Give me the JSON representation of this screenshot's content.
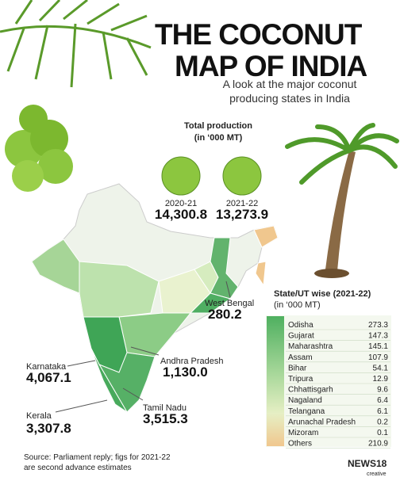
{
  "header": {
    "title_lines": [
      "THE COCONUT",
      "MAP OF INDIA"
    ],
    "subtitle_lines": [
      "A look at the major coconut",
      "producing states in India"
    ]
  },
  "total_production": {
    "heading_lines": [
      "Total production",
      "(in ‘000 MT)"
    ],
    "items": [
      {
        "year": "2020-21",
        "value": "14,300.8"
      },
      {
        "year": "2021-22",
        "value": "13,273.9"
      }
    ]
  },
  "map_labels": [
    {
      "state": "West Bengal",
      "value": "280.2"
    },
    {
      "state": "Andhra Pradesh",
      "value": "1,130.0"
    },
    {
      "state": "Karnataka",
      "value": "4,067.1"
    },
    {
      "state": "Tamil Nadu",
      "value": "3,515.3"
    },
    {
      "state": "Kerala",
      "value": "3,307.8"
    }
  ],
  "state_table": {
    "heading_lines": [
      "State/UT wise (2021-22)",
      "(in ‘000 MT)"
    ],
    "rows": [
      [
        "Odisha",
        "273.3"
      ],
      [
        "Gujarat",
        "147.3"
      ],
      [
        "Maharashtra",
        "145.1"
      ],
      [
        "Assam",
        "107.9"
      ],
      [
        "Bihar",
        "54.1"
      ],
      [
        "Tripura",
        "12.9"
      ],
      [
        "Chhattisgarh",
        "9.6"
      ],
      [
        "Nagaland",
        "6.4"
      ],
      [
        "Telangana",
        "6.1"
      ],
      [
        "Arunachal Pradesh",
        "0.2"
      ],
      [
        "Mizoram",
        "0.1"
      ],
      [
        "Others",
        "210.9"
      ]
    ]
  },
  "source_lines": [
    "Source: Parliament reply; figs for 2021-22",
    "are second advance estimates"
  ],
  "logo": {
    "brand": "NEWS18",
    "sub": "creative"
  }
}
